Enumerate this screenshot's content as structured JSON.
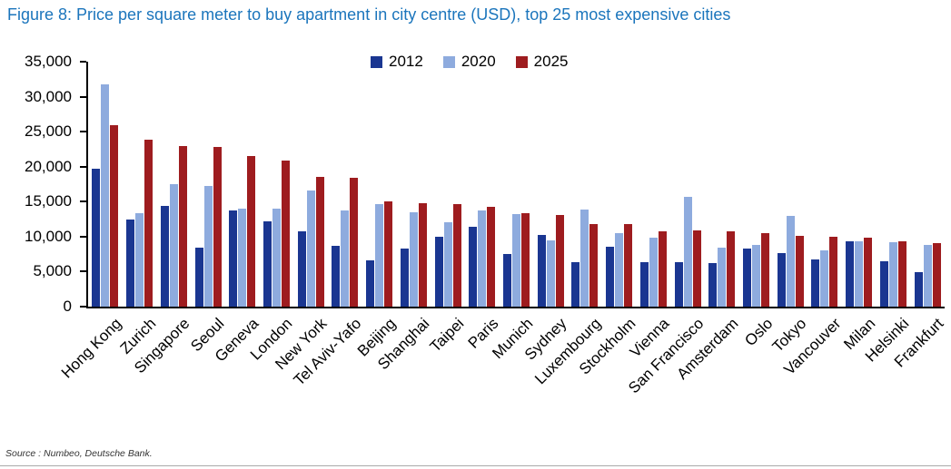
{
  "header": {
    "title": "Figure 8: Price per square meter to buy apartment in city centre (USD), top 25 most expensive cities"
  },
  "footer": {
    "source": "Source : Numbeo, Deutsche Bank."
  },
  "colors": {
    "title": "#1b75bc",
    "axis": "#000000",
    "bar_2012": "#1a3691",
    "bar_2020": "#8eabde",
    "bar_2025": "#9e1c1f"
  },
  "chart_data": {
    "type": "bar",
    "title": "Price per square meter to buy apartment in city centre (USD), top 25 most expensive cities",
    "xlabel": "",
    "ylabel": "",
    "ylim": [
      0,
      35000
    ],
    "ytick_step": 5000,
    "grid": false,
    "legend_position": "top-center",
    "categories": [
      "Hong Kong",
      "Zurich",
      "Singapore",
      "Seoul",
      "Geneva",
      "London",
      "New York",
      "Tel Aviv-Yafo",
      "Beijing",
      "Shanghai",
      "Taipei",
      "Paris",
      "Munich",
      "Sydney",
      "Luxembourg",
      "Stockholm",
      "Vienna",
      "San Francisco",
      "Amsterdam",
      "Oslo",
      "Tokyo",
      "Vancouver",
      "Milan",
      "Helsinki",
      "Frankfurt"
    ],
    "series": [
      {
        "name": "2012",
        "color": "#1a3691",
        "values": [
          19700,
          12400,
          14400,
          8400,
          13700,
          12200,
          10700,
          8700,
          6600,
          8300,
          10000,
          11400,
          7500,
          10200,
          6400,
          8600,
          6400,
          6300,
          6200,
          8300,
          7600,
          6800,
          9300,
          6500,
          4900
        ]
      },
      {
        "name": "2020",
        "color": "#8eabde",
        "values": [
          31800,
          13300,
          17500,
          17200,
          14000,
          14000,
          16600,
          13700,
          14700,
          13500,
          12000,
          13700,
          13200,
          9500,
          13900,
          10500,
          9800,
          15700,
          8400,
          8800,
          13000,
          8000,
          9400,
          9200,
          8800
        ]
      },
      {
        "name": "2025",
        "color": "#9e1c1f",
        "values": [
          25900,
          23900,
          22900,
          22800,
          21500,
          20900,
          18500,
          18400,
          15100,
          14800,
          14600,
          14200,
          13300,
          13100,
          11800,
          11800,
          10800,
          10900,
          10700,
          10500,
          10100,
          10000,
          9900,
          9300,
          9100
        ]
      }
    ]
  }
}
